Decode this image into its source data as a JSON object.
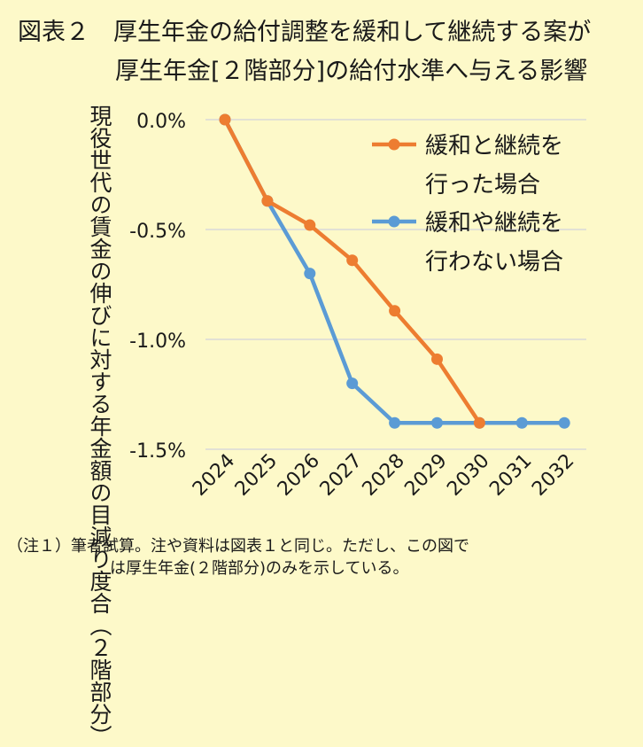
{
  "title": {
    "line1": "図表２　厚生年金の給付調整を緩和して継続する案が",
    "line2": "厚生年金[２階部分]の給付水準へ与える影響"
  },
  "note": {
    "line1": "（注１）筆者試算。注や資料は図表１と同じ。ただし、この図で",
    "line2": "は厚生年金(２階部分)のみを示している。"
  },
  "chart_data": {
    "type": "line",
    "x": [
      "2024",
      "2025",
      "2026",
      "2027",
      "2028",
      "2029",
      "2030",
      "2031",
      "2032"
    ],
    "ylabel": "現役世代の賃金の伸びに対する年金額の目減り度合（２階部分）",
    "ylim": [
      -1.5,
      0.0
    ],
    "yticks": [
      0.0,
      -0.5,
      -1.0,
      -1.5
    ],
    "ytick_labels": [
      "0.0%",
      "-0.5%",
      "-1.0%",
      "-1.5%"
    ],
    "grid": true,
    "legend_position": "top-right",
    "series": [
      {
        "name": "緩和と継続を行った場合",
        "legend_lines": [
          "緩和と継続を",
          "行った場合"
        ],
        "color": "#ed7d31",
        "values": [
          0.0,
          -0.37,
          -0.48,
          -0.64,
          -0.87,
          -1.09,
          -1.38,
          null,
          null
        ]
      },
      {
        "name": "緩和や継続を行わない場合",
        "legend_lines": [
          "緩和や継続を",
          "行わない場合"
        ],
        "color": "#5b9bd5",
        "values": [
          0.0,
          -0.37,
          -0.7,
          -1.2,
          -1.38,
          -1.38,
          -1.38,
          -1.38,
          -1.38
        ]
      }
    ]
  }
}
